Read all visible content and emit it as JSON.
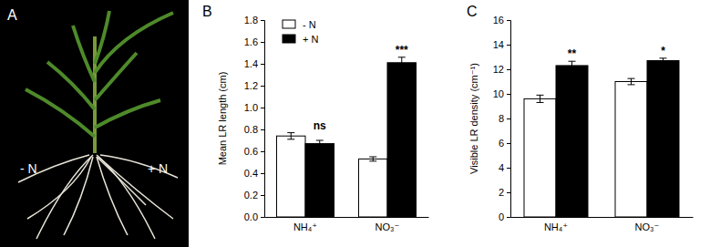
{
  "photo": {
    "label": "A",
    "left_label": "- N",
    "right_label": "+ N"
  },
  "chart_data": [
    {
      "type": "bar",
      "title": "B",
      "y_label": "Mean LR length (cm)",
      "categories": [
        "NH₄⁺",
        "NO₃⁻"
      ],
      "series": [
        {
          "name": "- N",
          "color": "#ffffff",
          "values": [
            0.74,
            0.53
          ],
          "errors": [
            0.03,
            0.02
          ]
        },
        {
          "name": "+ N",
          "color": "#000000",
          "values": [
            0.67,
            1.41
          ],
          "errors": [
            0.03,
            0.05
          ]
        }
      ],
      "annotations": [
        "ns",
        "***"
      ],
      "ylim": [
        0,
        1.8
      ],
      "yticks": [
        {
          "value": 0,
          "label": "0.0"
        },
        0.2,
        0.4,
        0.6,
        0.8,
        {
          "value": 1,
          "label": "1.0"
        },
        1.2,
        1.4,
        1.6,
        1.8
      ],
      "legend": "top-left"
    },
    {
      "type": "bar",
      "title": "C",
      "y_label": "Visible LR density (cm⁻¹)",
      "categories": [
        "NH₄⁺",
        "NO₃⁻"
      ],
      "series": [
        {
          "name": "- N",
          "color": "#ffffff",
          "values": [
            9.6,
            11.0
          ],
          "errors": [
            0.3,
            0.25
          ]
        },
        {
          "name": "+ N",
          "color": "#000000",
          "values": [
            12.3,
            12.7
          ],
          "errors": [
            0.35,
            0.2
          ]
        }
      ],
      "annotations": [
        "**",
        "*"
      ],
      "ylim": [
        0,
        16
      ],
      "yticks": [
        0,
        2,
        4,
        6,
        8,
        10,
        12,
        14,
        16
      ]
    }
  ]
}
